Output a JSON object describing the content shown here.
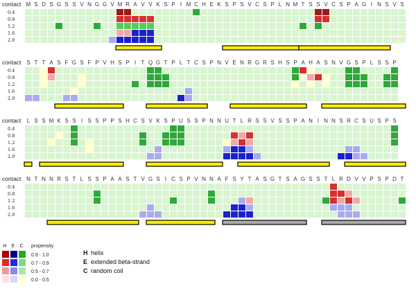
{
  "chart_data": {
    "type": "heatmap",
    "contact_label": "contact",
    "row_labels": [
      "0.4",
      "0.8",
      "1.2",
      "1.6",
      "2.0"
    ],
    "blocks": [
      {
        "sequence": "MSDSGSSVNGGVMRAVVKSPIMCHEKSPSVCSPLNMTSSVCSPAGINSVS",
        "cells": [
          "LLLLLLLLLLLLMMLLLLLLLLGLLLLLLLLLLLLLLLMMLLLLLLLLLL",
          "LLLLLLLLLLLLRRRRRLLLLLLLLLLLLLLLLLLLLLRRLLLLLLLLLL",
          "LLLLGLLLLGLLTTTTTLLLLLLLLLLLLLLLLLLLGLGLLLLLLLLLLL",
          "LLLLLLLLLLLLPPBBBLLLLLLLLLLLLLLLLLLLLLLLLLLLLLLLLL",
          "LLLLLLLLLLSQBBBBBLLLLLLLLLLLLLLLLLLLLLLLLLLLLLLLLL"
        ],
        "bars": [
          {
            "start": 12,
            "end": 18,
            "color": "yellow"
          },
          {
            "start": 26,
            "end": 36,
            "color": "yellow"
          },
          {
            "start": 36,
            "end": 48,
            "color": "yellow"
          }
        ]
      },
      {
        "sequence": "STTASFGSFPVHSPITQGTPLTCSPNVENRGRSHSPAHASNVGSPLSSP",
        "cells": [
          "LLYRLLLLLLLLLLLLGGLLLLLLLLLLLLLLLLLGRYLLLLGGLLLLGG",
          "LLYPLLLYLLLLLLLLGGGLLLLLLLLLLLLLLLLGYPRYLLGGGLLGGG",
          "LLYLLLLYLLLLLLGLGGGLLLLLLLLLLLLLLLLYLYLYLLGGGLLGGG",
          "LLLLLLYLLLLLLLLLLLLLLQLLLLLLLLLLLLLLLLLLLLLLLLLLLL",
          "QQLLLQQLLLLLLLLLLLLLBQLLLLLLLLLLLLLLLLLLLLLLLLLLLL"
        ],
        "bars": [
          {
            "start": 4,
            "end": 13,
            "color": "yellow"
          },
          {
            "start": 16,
            "end": 24,
            "color": "yellow"
          },
          {
            "start": 27,
            "end": 37,
            "color": "yellow"
          },
          {
            "start": 39,
            "end": 50,
            "color": "yellow"
          }
        ]
      },
      {
        "sequence": "LSSMKSSISSPPSHCSVKSPUSSPNNUTLRSSVSSPANINNSRCSUSPS",
        "cells": [
          "LLLLLLGLLLLLLLLLLLLGGLLLLLLLLLLLLLLLLLLLLLLLLLLLGG",
          "LLLLYLGLLLLLLLLGLLGGGLLLLLLRPRLLLLLLLLLLLLLLLLLLGG",
          "LLLYLLGLYLLLLLLGLLGGGLLLLLYPRPLLLLLLLLLLLLLLLLLLGG",
          "LLLLLLLLYLLLLLLLLQLLLLLLLLQBBQLLLLLLLLLLLLQQLLLLLL",
          "LLLLLLLLLLLLLLLLQQLLLLLLLLBBBBQLLLLLLLLLLBBQQLLLLL"
        ],
        "bars": [
          {
            "start": 0,
            "end": 1,
            "color": "yellow"
          },
          {
            "start": 2,
            "end": 13,
            "color": "yellow"
          },
          {
            "start": 16,
            "end": 26,
            "color": "yellow"
          },
          {
            "start": 28,
            "end": 40,
            "color": "yellow"
          },
          {
            "start": 42,
            "end": 50,
            "color": "yellow"
          }
        ]
      },
      {
        "sequence": "NTNNRSTLSSPAASTVGSICSPVNNAFSYTASGTSAGSSTLRDVVPSPDT",
        "cells": [
          "LLLLLLLLLLLLLLLLLLLLLLLLLLLLLLLLLLLLLLLLRLLLLLLLLL",
          "LLLLLLLLLGLLLLLLLLLLLLLLGLLLLLLLLLLLLLLLRRPLLLLLLL",
          "LLLLLLLLLGLLLLLLLLLGLLLLGLLLQPLLLLLLLLLGRPRPLLLLLG",
          "LLLLLLLLLLLLLLLLQLLLLLLLLLLBBQLLLLLLLLLLQQQLLLLLLL",
          "LLLLLLLLLLLLLLLQQQLLLLLLLLBBBBLLLLLLLLLLLQQQLLLLLL"
        ],
        "bars": [
          {
            "start": 3,
            "end": 15,
            "color": "yellow"
          },
          {
            "start": 16,
            "end": 25,
            "color": "yellow"
          },
          {
            "start": 26,
            "end": 37,
            "color": "gray"
          },
          {
            "start": 39,
            "end": 50,
            "color": "gray"
          }
        ]
      }
    ]
  },
  "legend": {
    "headers": [
      "H",
      "E",
      "C",
      "propensity"
    ],
    "ranges": [
      "0.9 - 1.0",
      "0.7 - 0.9",
      "0.5 - 0.7",
      "0.0 - 0.5"
    ],
    "colors": [
      [
        "#aa0000",
        "#00008b",
        "#22aa22"
      ],
      [
        "#e8262e",
        "#1a2ee0",
        "#77dd77"
      ],
      [
        "#ef9a9a",
        "#8888ee",
        "#a8e8a8"
      ],
      [
        "#ffe4e4",
        "#d8d8fa",
        "#ffffd4"
      ]
    ],
    "descriptions": [
      {
        "key": "H",
        "text": "helix"
      },
      {
        "key": "E",
        "text": "extended beta-strand"
      },
      {
        "key": "C",
        "text": "random coil"
      }
    ]
  },
  "cell_colors": {
    "L": "#d8f5d0",
    "G": "#2fa83a",
    "Y": "#ffffcc",
    "R": "#d73030",
    "P": "#f2a8a8",
    "B": "#1a22cc",
    "Q": "#aaaaf0",
    "M": "#a01818",
    "T": "#55cc55"
  },
  "bar_colors": {
    "yellow": "#ffee00",
    "gray": "#aaaaaa"
  }
}
